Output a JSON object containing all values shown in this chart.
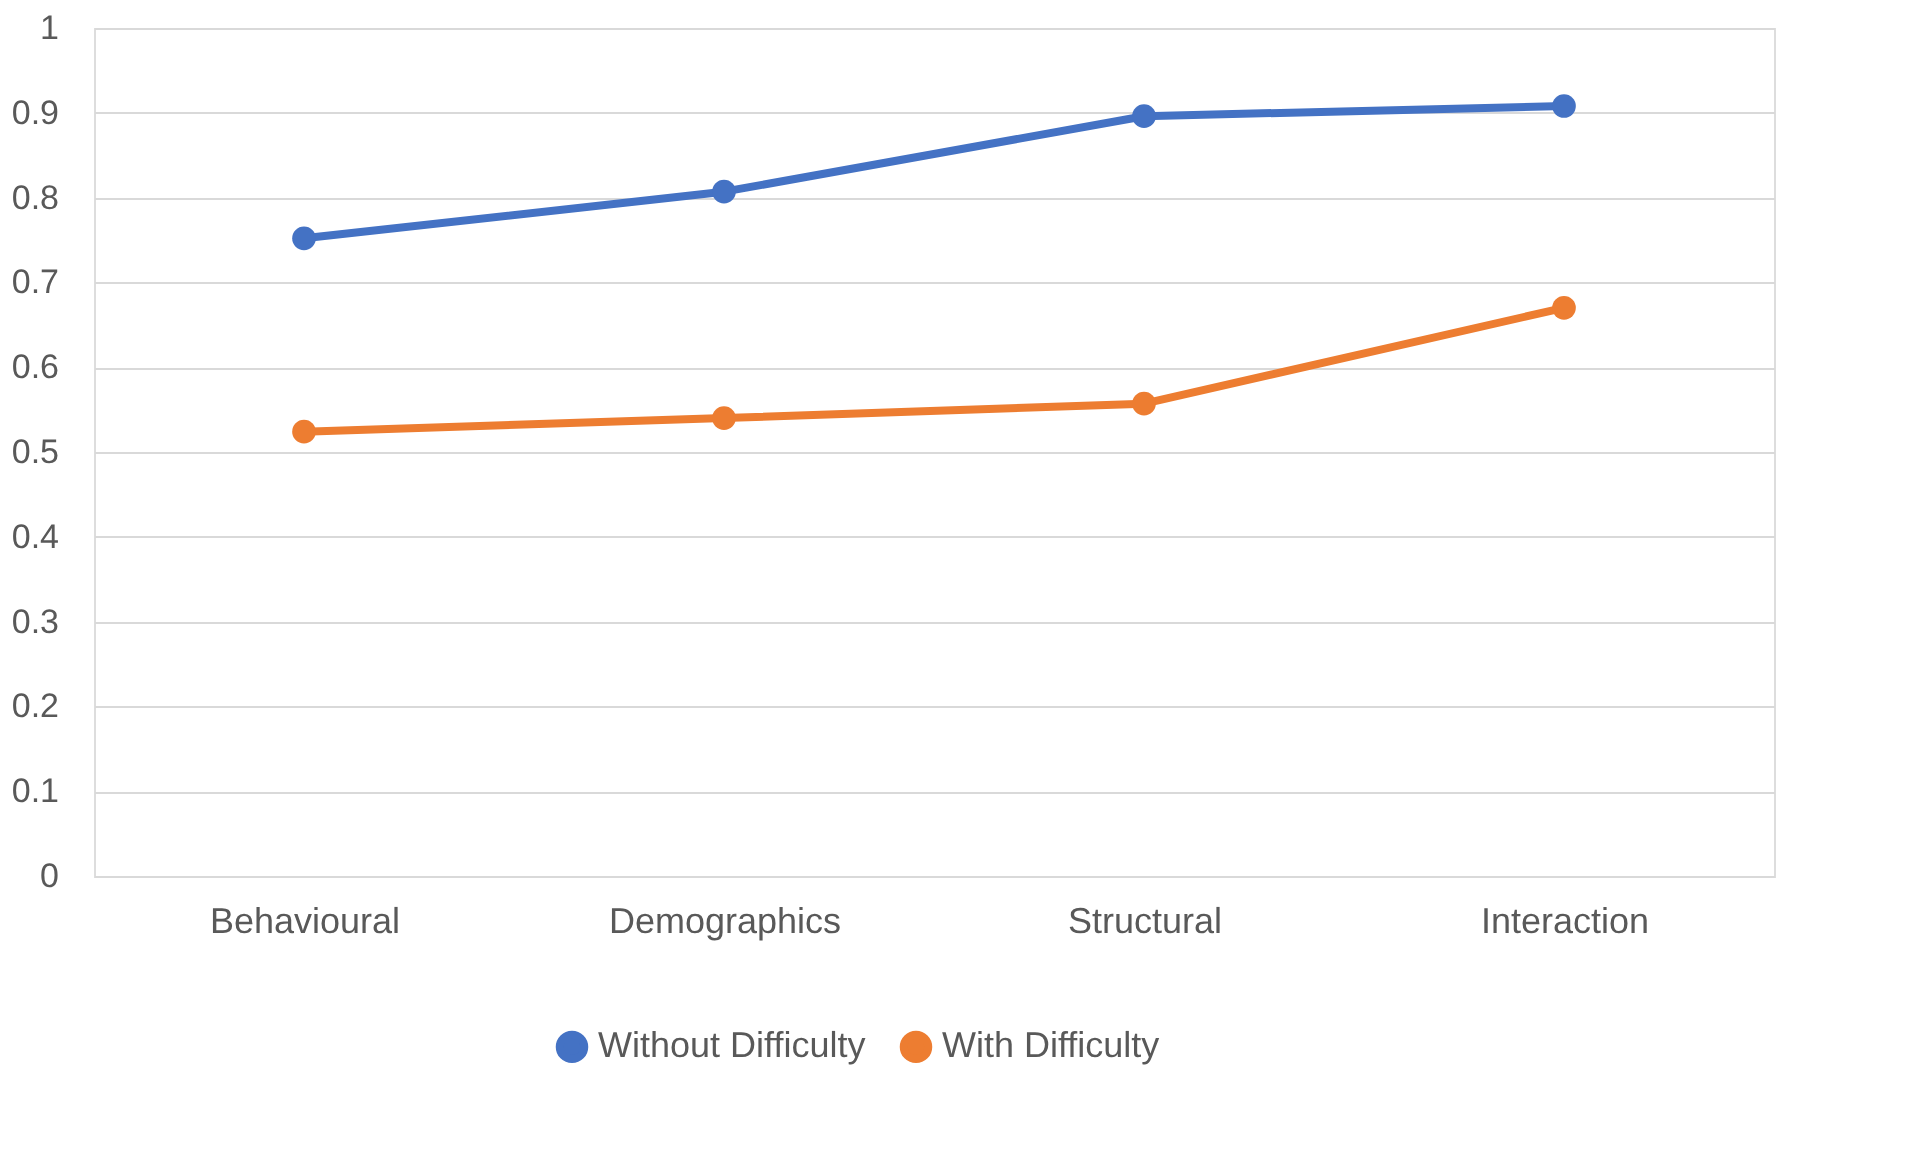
{
  "chart_data": {
    "type": "line",
    "categories": [
      "Behavioural",
      "Demographics",
      "Structural",
      "Interaction"
    ],
    "series": [
      {
        "name": "Without Difficulty",
        "color": "#4472c4",
        "values": [
          0.752,
          0.807,
          0.896,
          0.908
        ]
      },
      {
        "name": "With Difficulty",
        "color": "#ed7d31",
        "values": [
          0.524,
          0.54,
          0.557,
          0.67
        ]
      }
    ],
    "ylim": [
      0,
      1
    ],
    "yticks": [
      {
        "value": 0,
        "label": "0"
      },
      0.1,
      0.2,
      0.3,
      0.4,
      0.5,
      0.6,
      0.7,
      0.8,
      0.9,
      {
        "value": 1,
        "label": "1"
      }
    ],
    "grid": "y",
    "legend": "bottom",
    "marker": "circle",
    "line_style": "solid"
  }
}
